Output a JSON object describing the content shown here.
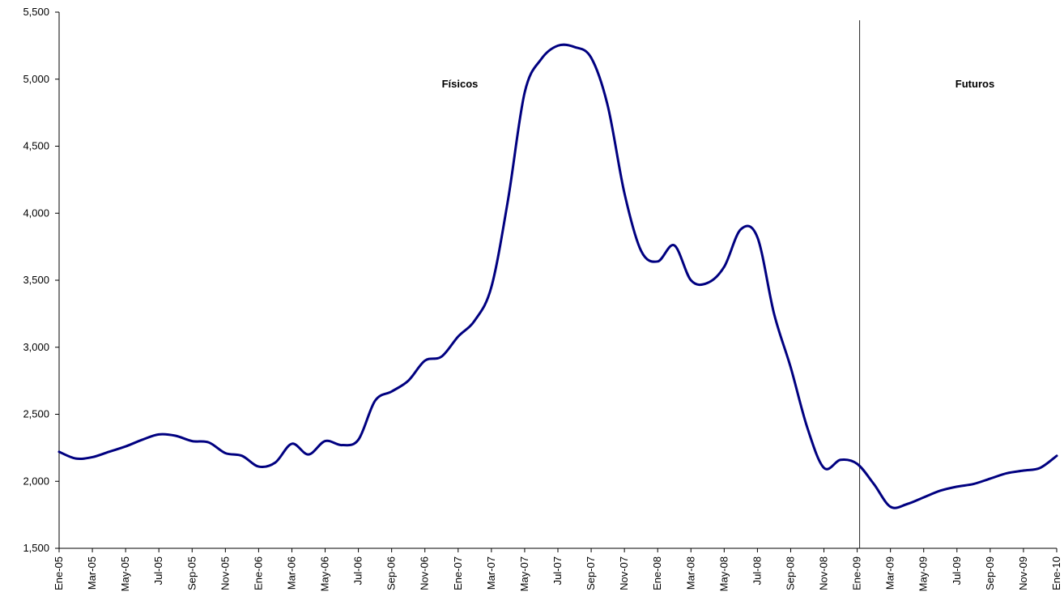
{
  "chart_data": {
    "type": "line",
    "title": "",
    "xlabel": "",
    "ylabel": "",
    "ylim": [
      1500,
      5500
    ],
    "yticks": [
      "1,500",
      "2,000",
      "2,500",
      "3,000",
      "3,500",
      "4,000",
      "4,500",
      "5,000",
      "5,500"
    ],
    "ytick_values": [
      1500,
      2000,
      2500,
      3000,
      3500,
      4000,
      4500,
      5000,
      5500
    ],
    "xtick_labels": [
      "Ene-05",
      "Mar-05",
      "May-05",
      "Jul-05",
      "Sep-05",
      "Nov-05",
      "Ene-06",
      "Mar-06",
      "May-06",
      "Jul-06",
      "Sep-06",
      "Nov-06",
      "Ene-07",
      "Mar-07",
      "May-07",
      "Jul-07",
      "Sep-07",
      "Nov-07",
      "Ene-08",
      "Mar-08",
      "May-08",
      "Jul-08",
      "Sep-08",
      "Nov-08",
      "Ene-09",
      "Mar-09",
      "May-09",
      "Jul-09",
      "Sep-09",
      "Nov-09",
      "Ene-10"
    ],
    "x": [
      "Ene-05",
      "Feb-05",
      "Mar-05",
      "Abr-05",
      "May-05",
      "Jun-05",
      "Jul-05",
      "Ago-05",
      "Sep-05",
      "Oct-05",
      "Nov-05",
      "Dic-05",
      "Ene-06",
      "Feb-06",
      "Mar-06",
      "Abr-06",
      "May-06",
      "Jun-06",
      "Jul-06",
      "Ago-06",
      "Sep-06",
      "Oct-06",
      "Nov-06",
      "Dic-06",
      "Ene-07",
      "Feb-07",
      "Mar-07",
      "Abr-07",
      "May-07",
      "Jun-07",
      "Jul-07",
      "Ago-07",
      "Sep-07",
      "Oct-07",
      "Nov-07",
      "Dic-07",
      "Ene-08",
      "Feb-08",
      "Mar-08",
      "Abr-08",
      "May-08",
      "Jun-08",
      "Jul-08",
      "Ago-08",
      "Sep-08",
      "Oct-08",
      "Nov-08",
      "Dic-08",
      "Ene-09",
      "Feb-09",
      "Mar-09",
      "Abr-09",
      "May-09",
      "Jun-09",
      "Jul-09",
      "Ago-09",
      "Sep-09",
      "Oct-09",
      "Nov-09",
      "Dic-09",
      "Ene-10"
    ],
    "series": [
      {
        "color": "#000080",
        "values": [
          2220,
          2170,
          2180,
          2220,
          2260,
          2310,
          2350,
          2340,
          2300,
          2290,
          2210,
          2190,
          2110,
          2140,
          2280,
          2200,
          2300,
          2270,
          2310,
          2600,
          2670,
          2750,
          2900,
          2930,
          3080,
          3200,
          3450,
          4100,
          4900,
          5150,
          5250,
          5240,
          5160,
          4800,
          4150,
          3720,
          3640,
          3760,
          3500,
          3480,
          3600,
          3880,
          3820,
          3250,
          2850,
          2400,
          2100,
          2160,
          2130,
          1980,
          1810,
          1830,
          1880,
          1930,
          1960,
          1980,
          2020,
          2060,
          2080,
          2100,
          2190
        ]
      }
    ],
    "annotations": [
      {
        "text": "Físicos"
      },
      {
        "text": "Futuros"
      }
    ],
    "divider_at": "Ene-09",
    "grid": false,
    "legend": "none"
  }
}
